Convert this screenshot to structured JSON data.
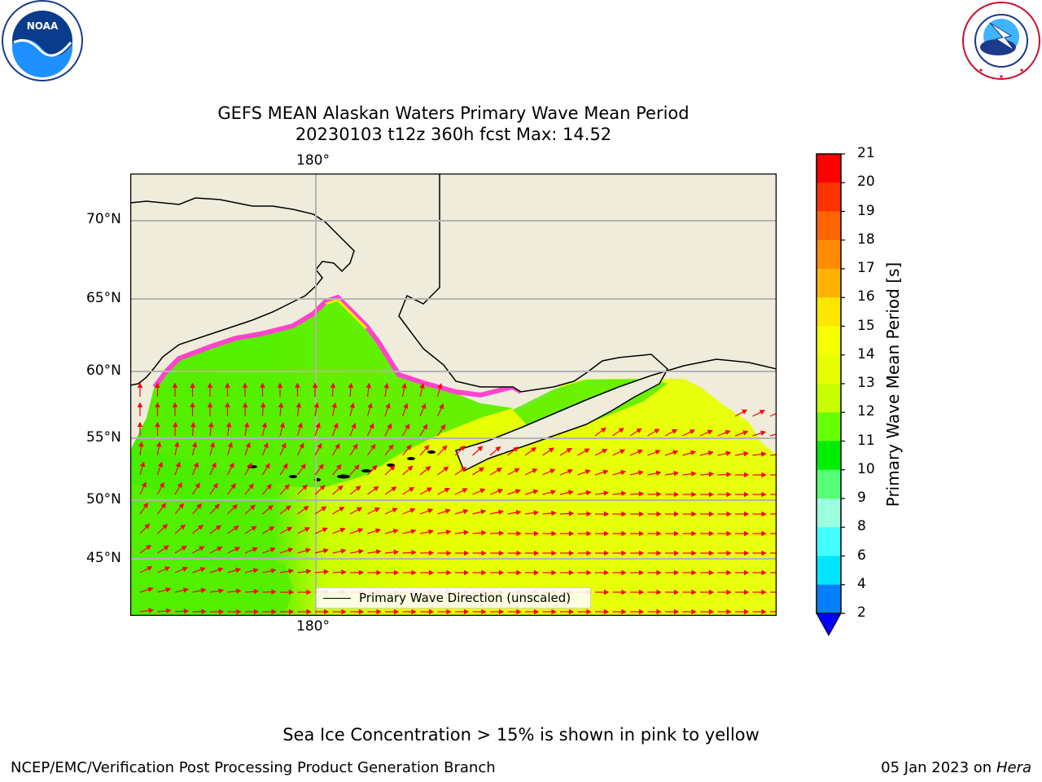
{
  "title_line1": "GEFS MEAN Alaskan Waters Primary Wave Mean Period",
  "title_line2": "20230103 t12z 360h fcst   Max: 14.52",
  "map": {
    "lon_label_top": "180°",
    "lon_label_bottom": "180°",
    "lat_labels": [
      "70°N",
      "65°N",
      "60°N",
      "55°N",
      "50°N",
      "45°N"
    ],
    "legend_label": "Primary Wave Direction (unscaled)",
    "colors": {
      "land": "#efecdc",
      "ocean_low": "#55ee00",
      "ocean_high": "#e6ff00",
      "arrow": "#ff0000",
      "ice": "#ff44cc",
      "grid": "#b3b3b3"
    }
  },
  "colorbar": {
    "title": "Primary Wave Mean Period [s]",
    "ticks": [
      "21",
      "20",
      "19",
      "18",
      "17",
      "16",
      "15",
      "14",
      "13",
      "12",
      "11",
      "10",
      "9",
      "8",
      "6",
      "4",
      "2"
    ],
    "colors": [
      "#ff0000",
      "#ff3300",
      "#ff6600",
      "#ff8c00",
      "#ffb300",
      "#ffe600",
      "#f5ff00",
      "#e6ff00",
      "#c8ff00",
      "#66ff00",
      "#00ee00",
      "#55ff77",
      "#99ffdd",
      "#44ffff",
      "#00e6ff",
      "#0080ff"
    ],
    "under_color": "#0000ff"
  },
  "caption": "Sea Ice Concentration > 15% is shown in pink to yellow",
  "footer": {
    "left": "NCEP/EMC/Verification Post Processing Product Generation Branch",
    "date": "05 Jan 2023 on",
    "host": "Hera"
  },
  "logos": {
    "left": "NOAA",
    "right": "NATIONAL WEATHER SERVICE"
  }
}
